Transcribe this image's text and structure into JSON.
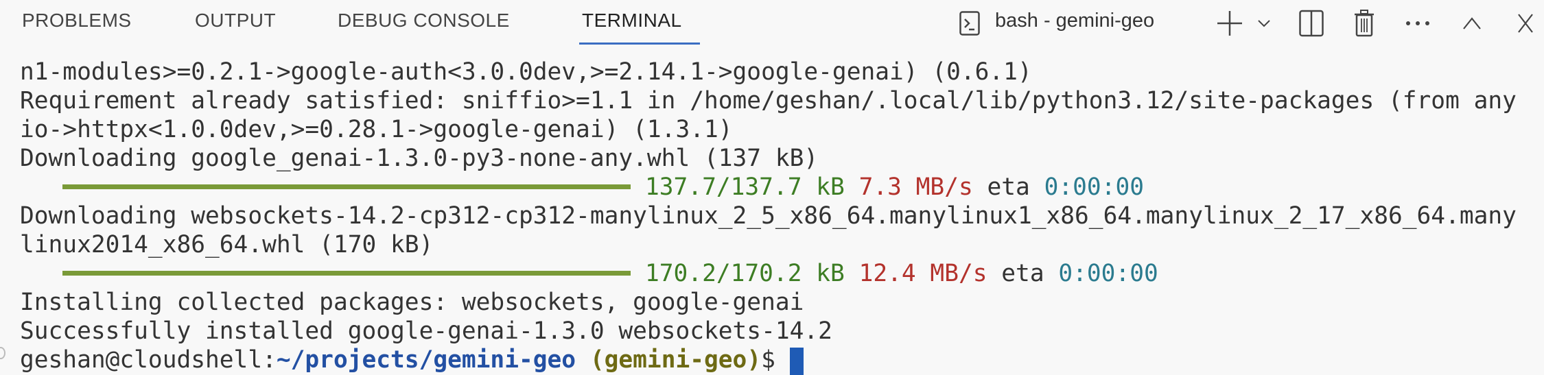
{
  "panel": {
    "tabs": [
      {
        "label": "PROBLEMS",
        "active": false
      },
      {
        "label": "OUTPUT",
        "active": false
      },
      {
        "label": "DEBUG CONSOLE",
        "active": false
      },
      {
        "label": "TERMINAL",
        "active": true
      }
    ],
    "accent": "#3b6ec2",
    "terminal_name": "bash - gemini-geo",
    "actions": [
      "terminal-icon",
      "plus-icon",
      "chevron-down-icon",
      "split-icon",
      "trash-icon",
      "ellipsis-icon",
      "chevron-up-icon",
      "close-icon"
    ]
  },
  "terminal": {
    "lines": [
      [
        {
          "t": "n1-modules>=0.2.1->google-auth<3.0.0dev,>=2.14.1->google-genai) (0.6.1)"
        }
      ],
      [
        {
          "t": "Requirement already satisfied: sniffio>=1.1 in /home/geshan/.local/lib/python3.12/site-packages (from any"
        }
      ],
      [
        {
          "t": "io->httpx<1.0.0dev,>=0.28.1->google-genai) (1.3.1)"
        }
      ],
      [
        {
          "t": "Downloading google_genai-1.3.0-py3-none-any.whl (137 kB)"
        }
      ],
      [
        {
          "bar": 1.0
        },
        {
          "t": "137.7/137.7 kB",
          "c": "g"
        },
        {
          "t": " "
        },
        {
          "t": "7.3 MB/s",
          "c": "r"
        },
        {
          "t": " eta "
        },
        {
          "t": "0:00:00",
          "c": "c"
        }
      ],
      [
        {
          "t": "Downloading websockets-14.2-cp312-cp312-manylinux_2_5_x86_64.manylinux1_x86_64.manylinux_2_17_x86_64.many"
        }
      ],
      [
        {
          "t": "linux2014_x86_64.whl (170 kB)"
        }
      ],
      [
        {
          "bar": 1.0
        },
        {
          "t": "170.2/170.2 kB",
          "c": "g"
        },
        {
          "t": " "
        },
        {
          "t": "12.4 MB/s",
          "c": "r"
        },
        {
          "t": " eta "
        },
        {
          "t": "0:00:00",
          "c": "c"
        }
      ],
      [
        {
          "t": "Installing collected packages: websockets, google-genai"
        }
      ],
      [
        {
          "t": "Successfully installed google-genai-1.3.0 websockets-14.2"
        }
      ],
      [
        {
          "t": "geshan@cloudshell:"
        },
        {
          "t": "~/projects/gemini-geo",
          "c": "b"
        },
        {
          "t": " "
        },
        {
          "t": "(gemini-geo)",
          "c": "o"
        },
        {
          "t": "$"
        },
        {
          "cursor": true
        }
      ]
    ]
  }
}
